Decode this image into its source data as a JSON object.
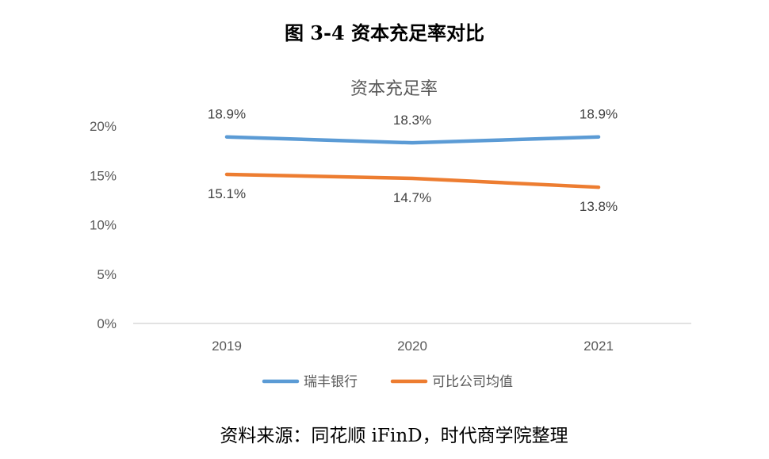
{
  "figure_title": "图 3-4 资本充足率对比",
  "source_note": "资料来源：同花顺 iFinD，时代商学院整理",
  "chart_data": {
    "type": "line",
    "title": "资本充足率",
    "xlabel": "",
    "ylabel": "",
    "categories": [
      "2019",
      "2020",
      "2021"
    ],
    "ylim": [
      0,
      20
    ],
    "yticks": [
      0,
      5,
      10,
      15,
      20
    ],
    "ytick_labels": [
      "0%",
      "5%",
      "10%",
      "15%",
      "20%"
    ],
    "grid": false,
    "legend_position": "bottom",
    "series": [
      {
        "name": "瑞丰银行",
        "values": [
          18.9,
          18.3,
          18.9
        ],
        "labels": [
          "18.9%",
          "18.3%",
          "18.9%"
        ],
        "color": "#5B9BD5",
        "label_position": "above"
      },
      {
        "name": "可比公司均值",
        "values": [
          15.1,
          14.7,
          13.8
        ],
        "labels": [
          "15.1%",
          "14.7%",
          "13.8%"
        ],
        "color": "#ED7D31",
        "label_position": "below"
      }
    ]
  }
}
